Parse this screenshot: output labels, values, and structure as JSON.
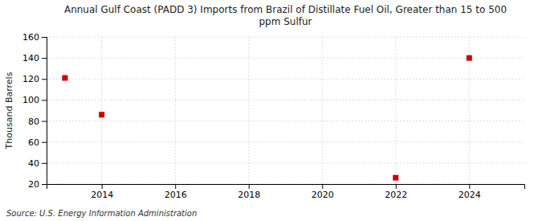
{
  "chart_data": {
    "type": "scatter",
    "title": "Annual Gulf Coast (PADD 3) Imports from Brazil of Distillate Fuel Oil, Greater than 15 to 500\nppm Sulfur",
    "y_label": "Thousand Barrels",
    "annotations": [
      "Source: U.S. Energy Information Administration"
    ],
    "x": [
      2013,
      2014,
      2022,
      2024
    ],
    "values": [
      121,
      86,
      26,
      140
    ],
    "color": "#cc0000",
    "marker": "square",
    "xlim": [
      2012.5,
      2025.5
    ],
    "xticks": [
      2014,
      2016,
      2018,
      2020,
      2022,
      2024
    ],
    "ylim": [
      20,
      160
    ],
    "yticks": [
      20,
      40,
      60,
      80,
      100,
      120,
      140,
      160
    ],
    "grid": true
  }
}
